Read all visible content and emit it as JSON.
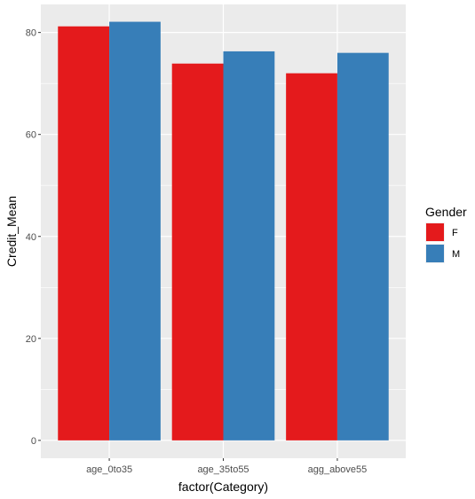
{
  "chart_data": {
    "type": "bar",
    "categories": [
      "age_0to35",
      "age_35to55",
      "agg_above55"
    ],
    "series": [
      {
        "name": "F",
        "values": [
          81.2,
          73.9,
          72.0
        ],
        "color": "#E41A1C"
      },
      {
        "name": "M",
        "values": [
          82.1,
          76.3,
          76.0
        ],
        "color": "#377EB8"
      }
    ],
    "xlabel": "factor(Category)",
    "ylabel": "Credit_Mean",
    "ylim": [
      -3.5,
      85.5
    ],
    "yticks": [
      0,
      20,
      40,
      60,
      80
    ],
    "ytick_labels": [
      "0",
      "20",
      "40",
      "60",
      "80"
    ],
    "legend": {
      "title": "Gender",
      "position": "right"
    },
    "grid": true,
    "panel_background": "#EBEBEB",
    "grid_color": "#FFFFFF"
  }
}
